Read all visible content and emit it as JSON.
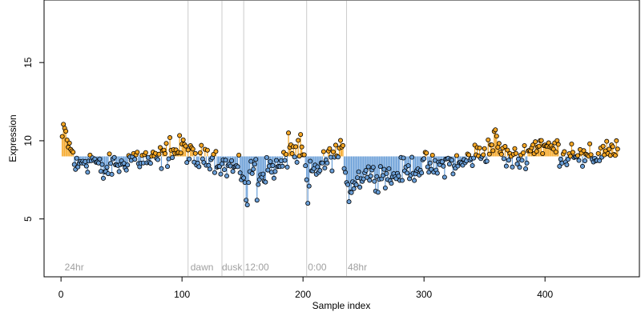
{
  "chart_data": {
    "type": "scatter",
    "xlabel": "Sample index",
    "ylabel": "Expression",
    "xlim": [
      -14,
      478
    ],
    "ylim": [
      1.3,
      19
    ],
    "x_ticks": [
      0,
      100,
      200,
      300,
      400
    ],
    "y_ticks": [
      5,
      10,
      15
    ],
    "baseline": 9.0,
    "grid": false,
    "vlines": [
      105,
      133,
      151,
      203,
      236
    ],
    "annotations": [
      {
        "x": 3,
        "text": "24hr"
      },
      {
        "x": 107,
        "text": "dawn"
      },
      {
        "x": 133,
        "text": "dusk"
      },
      {
        "x": 152,
        "text": "12:00"
      },
      {
        "x": 204,
        "text": "0:00"
      },
      {
        "x": 237,
        "text": "48hr"
      }
    ],
    "anchors": [
      [
        1,
        10.2
      ],
      [
        2,
        10.4
      ],
      [
        3,
        10.6
      ],
      [
        4,
        10.3
      ],
      [
        5,
        10.0
      ],
      [
        6,
        9.8
      ],
      [
        7,
        9.6
      ],
      [
        8,
        9.4
      ],
      [
        9,
        9.3
      ],
      [
        10,
        9.1
      ],
      [
        12,
        8.4
      ],
      [
        14,
        8.3
      ],
      [
        18,
        8.8
      ],
      [
        22,
        8.7
      ],
      [
        26,
        8.9
      ],
      [
        30,
        8.5
      ],
      [
        33,
        8.1
      ],
      [
        35,
        7.9
      ],
      [
        38,
        8.2
      ],
      [
        42,
        8.4
      ],
      [
        46,
        8.6
      ],
      [
        50,
        8.3
      ],
      [
        54,
        8.8
      ],
      [
        58,
        8.9
      ],
      [
        62,
        9.0
      ],
      [
        66,
        8.7
      ],
      [
        70,
        8.9
      ],
      [
        74,
        8.6
      ],
      [
        78,
        8.8
      ],
      [
        82,
        8.9
      ],
      [
        86,
        9.1
      ],
      [
        90,
        9.2
      ],
      [
        94,
        9.3
      ],
      [
        98,
        9.5
      ],
      [
        102,
        9.6
      ],
      [
        104,
        9.4
      ],
      [
        108,
        8.9
      ],
      [
        112,
        8.7
      ],
      [
        116,
        8.9
      ],
      [
        120,
        9.2
      ],
      [
        124,
        9.0
      ],
      [
        128,
        8.8
      ],
      [
        132,
        8.6
      ],
      [
        136,
        8.3
      ],
      [
        140,
        8.4
      ],
      [
        144,
        8.2
      ],
      [
        148,
        8.0
      ],
      [
        151,
        7.9
      ],
      [
        154,
        7.2
      ],
      [
        157,
        8.0
      ],
      [
        160,
        8.5
      ],
      [
        163,
        8.1
      ],
      [
        166,
        7.8
      ],
      [
        170,
        8.2
      ],
      [
        174,
        8.3
      ],
      [
        178,
        8.2
      ],
      [
        182,
        8.4
      ],
      [
        186,
        8.7
      ],
      [
        189,
        9.8
      ],
      [
        192,
        9.3
      ],
      [
        196,
        9.1
      ],
      [
        199,
        9.3
      ],
      [
        201,
        8.8
      ],
      [
        203,
        7.4
      ],
      [
        206,
        7.9
      ],
      [
        210,
        8.1
      ],
      [
        214,
        8.4
      ],
      [
        218,
        8.6
      ],
      [
        222,
        8.9
      ],
      [
        226,
        9.1
      ],
      [
        230,
        9.2
      ],
      [
        234,
        9.0
      ],
      [
        236,
        7.6
      ],
      [
        239,
        7.0
      ],
      [
        242,
        7.3
      ],
      [
        246,
        7.6
      ],
      [
        250,
        7.9
      ],
      [
        254,
        8.0
      ],
      [
        258,
        7.7
      ],
      [
        262,
        7.8
      ],
      [
        266,
        8.0
      ],
      [
        270,
        7.7
      ],
      [
        274,
        7.6
      ],
      [
        278,
        7.9
      ],
      [
        282,
        8.1
      ],
      [
        286,
        8.0
      ],
      [
        290,
        8.3
      ],
      [
        294,
        8.2
      ],
      [
        298,
        8.4
      ],
      [
        302,
        8.5
      ],
      [
        306,
        8.3
      ],
      [
        310,
        8.2
      ],
      [
        314,
        8.4
      ],
      [
        318,
        8.6
      ],
      [
        322,
        8.6
      ],
      [
        326,
        8.5
      ],
      [
        330,
        8.4
      ],
      [
        334,
        8.7
      ],
      [
        338,
        8.9
      ],
      [
        342,
        9.1
      ],
      [
        346,
        9.2
      ],
      [
        350,
        9.3
      ],
      [
        354,
        9.5
      ],
      [
        358,
        9.9
      ],
      [
        360,
        9.7
      ],
      [
        364,
        9.3
      ],
      [
        368,
        9.0
      ],
      [
        372,
        8.9
      ],
      [
        376,
        8.8
      ],
      [
        380,
        8.9
      ],
      [
        384,
        9.2
      ],
      [
        388,
        9.4
      ],
      [
        392,
        9.7
      ],
      [
        396,
        9.9
      ],
      [
        400,
        9.6
      ],
      [
        404,
        9.5
      ],
      [
        408,
        9.6
      ],
      [
        412,
        9.3
      ],
      [
        416,
        9.0
      ],
      [
        420,
        9.2
      ],
      [
        424,
        9.5
      ],
      [
        428,
        9.1
      ],
      [
        432,
        8.7
      ],
      [
        436,
        8.9
      ],
      [
        440,
        8.9
      ],
      [
        444,
        9.1
      ],
      [
        448,
        9.4
      ],
      [
        452,
        9.6
      ],
      [
        456,
        9.3
      ],
      [
        460,
        9.5
      ],
      [
        462,
        9.6
      ]
    ],
    "n_points": 460,
    "noise": 0.55,
    "outliers": [
      {
        "x": 90,
        "y": 10.2
      },
      {
        "x": 153,
        "y": 6.2
      },
      {
        "x": 154,
        "y": 5.9
      },
      {
        "x": 162,
        "y": 6.2
      },
      {
        "x": 163,
        "y": 7.2
      },
      {
        "x": 188,
        "y": 10.5
      },
      {
        "x": 198,
        "y": 10.4
      },
      {
        "x": 204,
        "y": 6.0
      },
      {
        "x": 205,
        "y": 7.1
      },
      {
        "x": 238,
        "y": 6.1
      },
      {
        "x": 358,
        "y": 10.6
      },
      {
        "x": 359,
        "y": 10.7
      }
    ],
    "colors": {
      "above": "#f5a623",
      "below": "#6a9fd8",
      "point_stroke": "#000000",
      "vline": "#cccccc",
      "annotation": "#a0a0a0"
    }
  }
}
